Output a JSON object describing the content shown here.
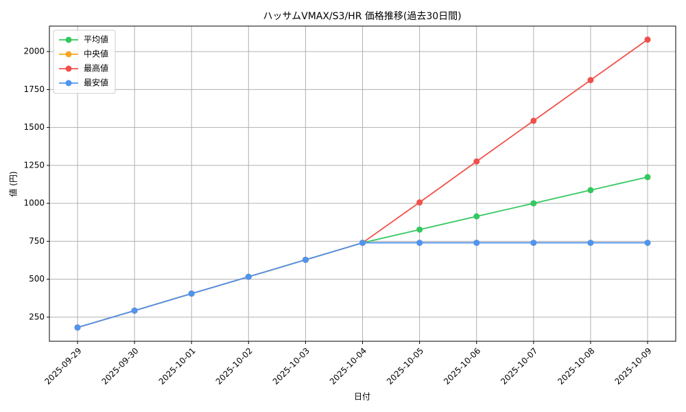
{
  "chart_data": {
    "type": "line",
    "title": "ハッサムVMAX/S3/HR 価格推移(過去30日間)",
    "x_label": "日付",
    "y_label": "値 (円)",
    "categories": [
      "2025-09-29",
      "2025-09-30",
      "2025-10-01",
      "2025-10-02",
      "2025-10-03",
      "2025-10-04",
      "2025-10-05",
      "2025-10-06",
      "2025-10-07",
      "2025-10-08",
      "2025-10-09"
    ],
    "series": [
      {
        "name": "平均値",
        "color": "#33c85f",
        "values": [
          182,
          293,
          405,
          516,
          628,
          740,
          827,
          914,
          1000,
          1087,
          1173
        ]
      },
      {
        "name": "中央値",
        "color": "#f5a623",
        "values": [
          182,
          293,
          405,
          516,
          628,
          740,
          740,
          740,
          740,
          740,
          740
        ]
      },
      {
        "name": "最高値",
        "color": "#f0504a",
        "values": [
          182,
          293,
          405,
          516,
          628,
          740,
          1006,
          1276,
          1544,
          1812,
          2079
        ]
      },
      {
        "name": "最安値",
        "color": "#4f94ef",
        "values": [
          182,
          293,
          405,
          516,
          628,
          740,
          740,
          740,
          740,
          740,
          740
        ]
      }
    ],
    "ylim": [
      91,
      2168
    ],
    "yticks": [
      250,
      500,
      750,
      1000,
      1250,
      1500,
      1750,
      2000
    ],
    "grid": true,
    "legend": "upper-left"
  }
}
